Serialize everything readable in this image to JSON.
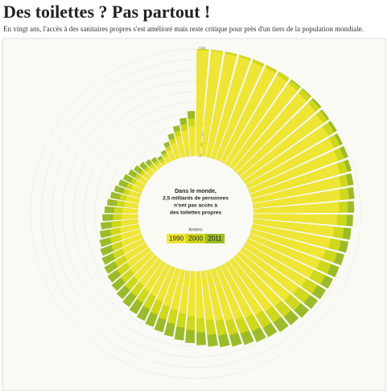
{
  "chart_data": {
    "type": "radial-bar",
    "title": "Des toilettes ? Pas partout !",
    "subtitle": "En vingt ans, l'accès à des sanitaires propres s'est amélioré mais reste critique pour près d'un tiers de la population mondiale.",
    "center_text": [
      "Dans le monde,",
      "2,5 milliards de personnes",
      "n'ont pas accès à",
      "des toilettes propres"
    ],
    "legend_title": "Années",
    "rlim": [
      0,
      100
    ],
    "rticks": [
      0,
      10,
      20,
      30,
      40,
      50,
      60,
      70,
      80,
      90,
      100
    ],
    "categories": [
      null,
      null,
      null,
      null,
      null,
      null,
      null,
      null,
      null,
      null,
      null,
      null,
      null,
      null,
      null,
      null,
      null,
      null,
      null,
      null,
      null,
      null,
      null,
      null,
      null,
      null,
      null,
      null,
      null,
      null,
      null,
      null,
      null,
      null,
      null,
      null,
      null,
      null,
      null,
      null,
      null,
      null,
      null,
      null,
      null,
      null,
      null,
      null,
      null,
      null,
      null,
      null,
      null,
      null,
      null,
      null,
      null,
      null,
      null,
      null,
      null,
      null,
      null,
      null,
      null,
      null,
      null,
      null,
      null,
      null,
      null,
      null
    ],
    "series": [
      {
        "name": "2011",
        "color": "#9cbb2a",
        "values": [
          100,
          100,
          100,
          100,
          100,
          100,
          100,
          100,
          100,
          100,
          99,
          99,
          98,
          98,
          97,
          96,
          95,
          94,
          93,
          92,
          91,
          90,
          89,
          88,
          87,
          86,
          85,
          83,
          82,
          80,
          79,
          77,
          75,
          73,
          71,
          69,
          67,
          65,
          63,
          61,
          59,
          57,
          55,
          53,
          51,
          49,
          47,
          45,
          43,
          41,
          39,
          37,
          35,
          33,
          31,
          29,
          27,
          25,
          23,
          21,
          19,
          17,
          15,
          13,
          11,
          9,
          12,
          18,
          24,
          30,
          36,
          42
        ]
      },
      {
        "name": "2000",
        "color": "#cfd81c",
        "values": [
          100,
          100,
          100,
          100,
          100,
          100,
          100,
          99,
          99,
          98,
          97,
          96,
          95,
          94,
          93,
          91,
          90,
          88,
          87,
          85,
          84,
          83,
          81,
          80,
          78,
          77,
          75,
          73,
          71,
          70,
          68,
          66,
          64,
          62,
          60,
          57,
          55,
          53,
          51,
          49,
          47,
          45,
          43,
          41,
          40,
          38,
          36,
          34,
          32,
          30,
          29,
          27,
          25,
          23,
          22,
          20,
          18,
          16,
          15,
          13,
          12,
          10,
          9,
          8,
          7,
          6,
          9,
          14,
          19,
          25,
          30,
          35
        ]
      },
      {
        "name": "1990",
        "color": "#efe534",
        "values": [
          99,
          99,
          98,
          98,
          97,
          97,
          96,
          95,
          94,
          93,
          92,
          90,
          89,
          88,
          86,
          84,
          82,
          80,
          78,
          76,
          74,
          72,
          70,
          68,
          66,
          64,
          62,
          60,
          58,
          56,
          54,
          52,
          50,
          48,
          46,
          44,
          42,
          40,
          38,
          36,
          34,
          32,
          31,
          29,
          28,
          26,
          25,
          23,
          22,
          20,
          19,
          18,
          16,
          15,
          14,
          13,
          12,
          11,
          10,
          9,
          8,
          7,
          6,
          5,
          4,
          3,
          6,
          10,
          15,
          20,
          24,
          28
        ]
      }
    ]
  }
}
